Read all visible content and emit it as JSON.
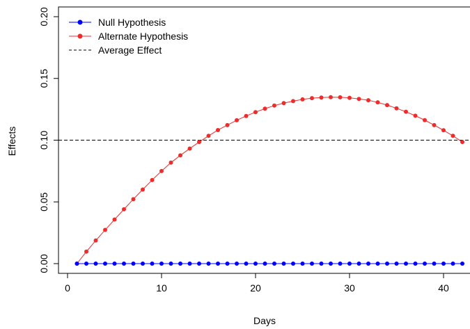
{
  "chart_data": {
    "type": "line",
    "title": "",
    "xlabel": "Days",
    "ylabel": "Effects",
    "xlim": [
      0,
      42
    ],
    "ylim": [
      0,
      0.2
    ],
    "xticks": [
      0,
      10,
      20,
      30,
      40
    ],
    "yticks": [
      0.0,
      0.05,
      0.1,
      0.15,
      0.2
    ],
    "xtick_labels": [
      "0",
      "10",
      "20",
      "30",
      "40"
    ],
    "ytick_labels": [
      "0.00",
      "0.05",
      "0.10",
      "0.15",
      "0.20"
    ],
    "grid": false,
    "legend_position": "top-left",
    "x": [
      1,
      2,
      3,
      4,
      5,
      6,
      7,
      8,
      9,
      10,
      11,
      12,
      13,
      14,
      15,
      16,
      17,
      18,
      19,
      20,
      21,
      22,
      23,
      24,
      25,
      26,
      27,
      28,
      29,
      30,
      31,
      32,
      33,
      34,
      35,
      36,
      37,
      38,
      39,
      40,
      41,
      42
    ],
    "series": [
      {
        "name": "Null Hypothesis",
        "color": "#0000ff",
        "marker": "circle",
        "values": [
          0,
          0,
          0,
          0,
          0,
          0,
          0,
          0,
          0,
          0,
          0,
          0,
          0,
          0,
          0,
          0,
          0,
          0,
          0,
          0,
          0,
          0,
          0,
          0,
          0,
          0,
          0,
          0,
          0,
          0,
          0,
          0,
          0,
          0,
          0,
          0,
          0,
          0,
          0,
          0,
          0,
          0
        ]
      },
      {
        "name": "Alternate Hypothesis",
        "color": "#ee2c2c",
        "marker": "circle",
        "values": [
          0.0,
          0.0097,
          0.0187,
          0.0273,
          0.0357,
          0.044,
          0.0522,
          0.06,
          0.0677,
          0.075,
          0.0818,
          0.0877,
          0.0932,
          0.0985,
          0.1035,
          0.1082,
          0.1122,
          0.1161,
          0.1196,
          0.1227,
          0.1255,
          0.128,
          0.13,
          0.1316,
          0.133,
          0.134,
          0.1345,
          0.1348,
          0.1347,
          0.1343,
          0.1334,
          0.1323,
          0.1306,
          0.1284,
          0.1258,
          0.123,
          0.1198,
          0.1162,
          0.1122,
          0.108,
          0.1035,
          0.0985
        ]
      }
    ],
    "reference_lines": [
      {
        "name": "Average Effect",
        "y": 0.1,
        "color": "#000000",
        "style": "dashed"
      }
    ]
  }
}
